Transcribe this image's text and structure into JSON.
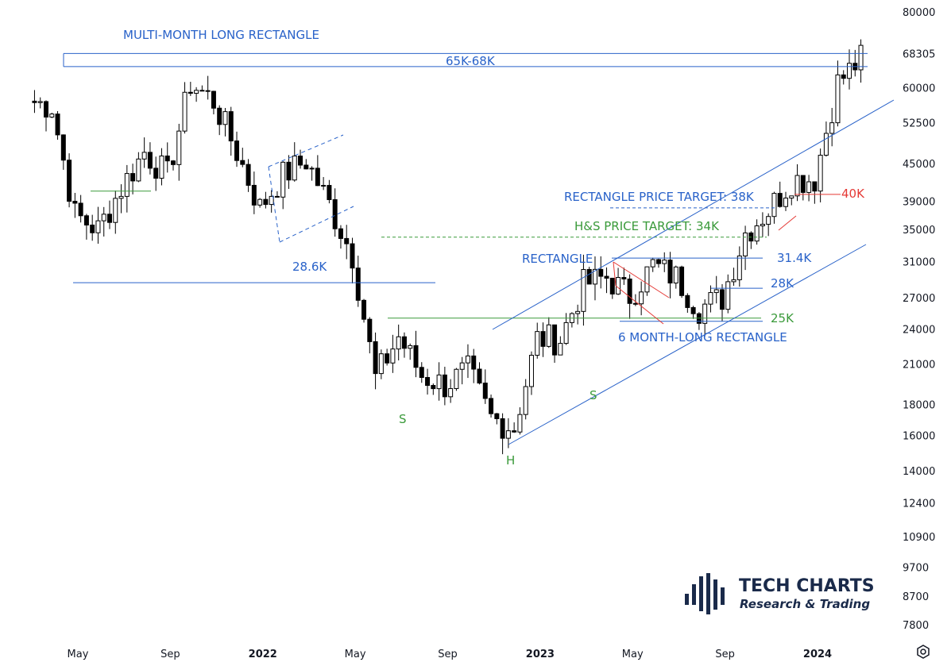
{
  "chart_data": {
    "type": "candlestick",
    "title": "",
    "yscale": "log",
    "ylim": [
      7500,
      85000
    ],
    "y_ticks": [
      "80000",
      "68305",
      "60000",
      "52500",
      "45000",
      "39000",
      "35000",
      "31000",
      "27000",
      "24000",
      "21000",
      "18000",
      "16000",
      "14000",
      "12400",
      "10900",
      "9700",
      "8700",
      "7800"
    ],
    "x_ticks": [
      {
        "label": "May",
        "month": "2021-05",
        "bold": false
      },
      {
        "label": "Sep",
        "month": "2021-09",
        "bold": false
      },
      {
        "label": "2022",
        "month": "2022-01",
        "bold": true
      },
      {
        "label": "May",
        "month": "2022-05",
        "bold": false
      },
      {
        "label": "Sep",
        "month": "2022-09",
        "bold": false
      },
      {
        "label": "2023",
        "month": "2023-01",
        "bold": true
      },
      {
        "label": "May",
        "month": "2023-05",
        "bold": false
      },
      {
        "label": "Sep",
        "month": "2023-09",
        "bold": false
      },
      {
        "label": "2024",
        "month": "2024-01",
        "bold": true
      }
    ],
    "weekly_closes_approx": [
      {
        "date": "2021-03",
        "close": 57000
      },
      {
        "date": "2021-04",
        "close": 56000
      },
      {
        "date": "2021-05",
        "close": 37000
      },
      {
        "date": "2021-06",
        "close": 35000
      },
      {
        "date": "2021-07",
        "close": 41000
      },
      {
        "date": "2021-08",
        "close": 47000
      },
      {
        "date": "2021-09",
        "close": 43000
      },
      {
        "date": "2021-10",
        "close": 61000
      },
      {
        "date": "2021-11",
        "close": 57000
      },
      {
        "date": "2021-12",
        "close": 47000
      },
      {
        "date": "2022-01",
        "close": 38000
      },
      {
        "date": "2022-02",
        "close": 43000
      },
      {
        "date": "2022-03",
        "close": 45500
      },
      {
        "date": "2022-04",
        "close": 38500
      },
      {
        "date": "2022-05",
        "close": 31800
      },
      {
        "date": "2022-06",
        "close": 19900
      },
      {
        "date": "2022-07",
        "close": 23300
      },
      {
        "date": "2022-08",
        "close": 20100
      },
      {
        "date": "2022-09",
        "close": 19400
      },
      {
        "date": "2022-10",
        "close": 20500
      },
      {
        "date": "2022-11",
        "close": 17100
      },
      {
        "date": "2022-12",
        "close": 16500
      },
      {
        "date": "2023-01",
        "close": 23100
      },
      {
        "date": "2023-02",
        "close": 23100
      },
      {
        "date": "2023-03",
        "close": 28400
      },
      {
        "date": "2023-04",
        "close": 29200
      },
      {
        "date": "2023-05",
        "close": 27200
      },
      {
        "date": "2023-06",
        "close": 30500
      },
      {
        "date": "2023-07",
        "close": 29200
      },
      {
        "date": "2023-08",
        "close": 26000
      },
      {
        "date": "2023-09",
        "close": 27000
      },
      {
        "date": "2023-10",
        "close": 34600
      },
      {
        "date": "2023-11",
        "close": 37700
      },
      {
        "date": "2023-12",
        "close": 42300
      },
      {
        "date": "2024-01",
        "close": 42500
      },
      {
        "date": "2024-02",
        "close": 61100
      },
      {
        "date": "2024-03",
        "close": 67000
      }
    ],
    "annotations": [
      {
        "text": "MULTI-MONTH LONG RECTANGLE",
        "color": "#2962c9"
      },
      {
        "text": "65K-68K",
        "color": "#2962c9"
      },
      {
        "text": "28.6K",
        "color": "#2962c9"
      },
      {
        "text": "RECTANGLE PRICE TARGET: 38K",
        "color": "#2962c9"
      },
      {
        "text": "H&S PRICE TARGET: 34K",
        "color": "#3a9a3a"
      },
      {
        "text": "40K",
        "color": "#e53935"
      },
      {
        "text": "RECTANGLE",
        "color": "#2962c9"
      },
      {
        "text": "31.4K",
        "color": "#2962c9"
      },
      {
        "text": "28K",
        "color": "#2962c9"
      },
      {
        "text": "25K",
        "color": "#3a9a3a"
      },
      {
        "text": "6 MONTH-LONG RECTANGLE",
        "color": "#2962c9"
      },
      {
        "text": "S",
        "color": "#3a9a3a"
      },
      {
        "text": "H",
        "color": "#3a9a3a"
      },
      {
        "text": "S",
        "color": "#3a9a3a"
      }
    ],
    "levels": [
      {
        "value": 68305,
        "color": "#2962c9"
      },
      {
        "value": 65000,
        "color": "#2962c9"
      },
      {
        "value": 28600,
        "color": "#2962c9"
      },
      {
        "value": 25000,
        "color": "#3a9a3a"
      },
      {
        "value": 31400,
        "color": "#2962c9"
      },
      {
        "value": 28000,
        "color": "#2962c9"
      },
      {
        "value": 38000,
        "color": "#2962c9"
      },
      {
        "value": 34000,
        "color": "#3a9a3a"
      },
      {
        "value": 40000,
        "color": "#e53935"
      }
    ],
    "colors": {
      "up": "#ffffff",
      "down": "#000000",
      "blue": "#2962c9",
      "green": "#3a9a3a",
      "red": "#e53935"
    }
  },
  "logo": {
    "name": "TECH CHARTS",
    "tagline": "Research & Trading",
    "icon": "bar-logo-icon"
  },
  "settings_icon": "gear-icon"
}
